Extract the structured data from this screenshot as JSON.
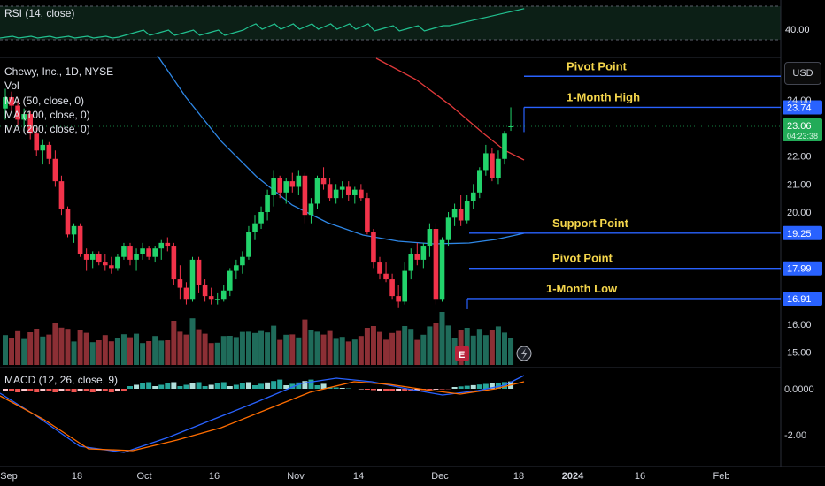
{
  "rsi": {
    "label": "RSI (14, close)",
    "axis_label": "40.00"
  },
  "main": {
    "labels": [
      "Chewy, Inc., 1D, NYSE",
      "Vol",
      "MA (50, close, 0)",
      "MA (100, close, 0)",
      "MA (200, close, 0)"
    ],
    "currency": "USD"
  },
  "price_axis": {
    "ticks": [
      "24.00",
      "22.00",
      "21.00",
      "20.00",
      "16.00",
      "15.00"
    ]
  },
  "annotations": [
    {
      "text": "Pivot Point",
      "price": 24.85,
      "value_label": ""
    },
    {
      "text": "1-Month High",
      "price": 23.74,
      "value_label": "23.74"
    },
    {
      "text": "Support Point",
      "price": 19.25,
      "value_label": "19.25"
    },
    {
      "text": "Pivot Point",
      "price": 17.99,
      "value_label": "17.99"
    },
    {
      "text": "1-Month Low",
      "price": 16.91,
      "value_label": "16.91"
    }
  ],
  "last_price": {
    "value": "23.06",
    "countdown": "04:23:38"
  },
  "macd": {
    "label": "MACD (12, 26, close, 9)",
    "axis_ticks": [
      "0.0000",
      "-2.00"
    ]
  },
  "time_axis": [
    "Sep",
    "18",
    "Oct",
    "16",
    "Nov",
    "14",
    "Dec",
    "18",
    "2024",
    "16",
    "Feb"
  ],
  "event_badges": [
    "E",
    "dividend-lightning-icon"
  ],
  "colors": {
    "up": "#22d36b",
    "down": "#f2334a",
    "ma50": "#2e87e6",
    "ma200": "#e0393a",
    "annotation": "#f5d64c",
    "line": "#2962ff"
  },
  "chart_data": {
    "type": "candlestick",
    "candles": [
      [
        23.7,
        24.4,
        23.3,
        24.1
      ],
      [
        24.1,
        24.3,
        23.6,
        23.8
      ],
      [
        23.8,
        24.0,
        23.1,
        23.3
      ],
      [
        23.3,
        23.7,
        22.9,
        23.5
      ],
      [
        23.5,
        23.6,
        22.6,
        22.8
      ],
      [
        22.8,
        23.0,
        22.0,
        22.2
      ],
      [
        22.2,
        22.6,
        21.7,
        22.4
      ],
      [
        22.4,
        22.5,
        21.7,
        21.9
      ],
      [
        21.9,
        22.2,
        20.9,
        21.1
      ],
      [
        21.1,
        21.3,
        19.9,
        20.1
      ],
      [
        20.1,
        20.2,
        19.1,
        19.2
      ],
      [
        19.2,
        19.6,
        18.9,
        19.5
      ],
      [
        19.5,
        19.6,
        18.4,
        18.5
      ],
      [
        18.5,
        18.7,
        17.9,
        18.3
      ],
      [
        18.3,
        18.6,
        18.0,
        18.5
      ],
      [
        18.5,
        18.6,
        18.1,
        18.2
      ],
      [
        18.2,
        18.5,
        17.9,
        18.1
      ],
      [
        18.1,
        18.4,
        17.8,
        18.0
      ],
      [
        18.0,
        18.5,
        17.9,
        18.4
      ],
      [
        18.4,
        18.9,
        18.3,
        18.8
      ],
      [
        18.8,
        18.9,
        18.1,
        18.3
      ],
      [
        18.3,
        18.7,
        17.9,
        18.5
      ],
      [
        18.5,
        18.9,
        18.3,
        18.7
      ],
      [
        18.7,
        18.8,
        18.3,
        18.4
      ],
      [
        18.4,
        18.8,
        18.2,
        18.7
      ],
      [
        18.7,
        19.0,
        18.3,
        18.9
      ],
      [
        18.9,
        19.1,
        18.6,
        18.8
      ],
      [
        18.8,
        18.9,
        17.4,
        17.6
      ],
      [
        17.6,
        18.1,
        16.9,
        17.3
      ],
      [
        17.3,
        17.5,
        16.7,
        16.9
      ],
      [
        16.9,
        18.4,
        16.8,
        18.3
      ],
      [
        18.3,
        18.4,
        17.1,
        17.4
      ],
      [
        17.4,
        17.6,
        16.8,
        17.0
      ],
      [
        17.0,
        17.3,
        16.7,
        16.9
      ],
      [
        16.9,
        17.1,
        16.7,
        16.9
      ],
      [
        16.9,
        17.4,
        16.8,
        17.2
      ],
      [
        17.2,
        18.0,
        17.0,
        17.9
      ],
      [
        17.9,
        18.3,
        17.6,
        18.1
      ],
      [
        18.1,
        18.6,
        17.8,
        18.4
      ],
      [
        18.4,
        19.5,
        18.3,
        19.3
      ],
      [
        19.3,
        19.9,
        19.0,
        19.6
      ],
      [
        19.6,
        20.2,
        19.4,
        20.0
      ],
      [
        20.0,
        20.8,
        19.7,
        20.6
      ],
      [
        20.6,
        21.5,
        20.2,
        21.2
      ],
      [
        21.2,
        21.3,
        20.5,
        20.7
      ],
      [
        20.7,
        21.2,
        20.3,
        21.1
      ],
      [
        21.1,
        21.4,
        20.7,
        20.9
      ],
      [
        20.9,
        21.5,
        20.6,
        21.3
      ],
      [
        21.3,
        21.4,
        19.6,
        19.9
      ],
      [
        19.9,
        20.5,
        19.6,
        20.3
      ],
      [
        20.3,
        21.3,
        20.1,
        21.2
      ],
      [
        21.2,
        21.6,
        20.8,
        21.0
      ],
      [
        21.0,
        21.2,
        20.4,
        20.5
      ],
      [
        20.5,
        21.0,
        20.3,
        20.8
      ],
      [
        20.8,
        21.1,
        20.5,
        20.9
      ],
      [
        20.9,
        21.1,
        20.4,
        20.6
      ],
      [
        20.6,
        20.9,
        20.3,
        20.8
      ],
      [
        20.8,
        21.0,
        20.4,
        20.5
      ],
      [
        20.5,
        20.7,
        19.2,
        19.3
      ],
      [
        19.3,
        19.4,
        18.0,
        18.2
      ],
      [
        18.2,
        18.4,
        17.6,
        17.8
      ],
      [
        17.8,
        18.2,
        17.5,
        17.6
      ],
      [
        17.6,
        17.8,
        16.9,
        17.0
      ],
      [
        17.0,
        17.4,
        16.6,
        16.8
      ],
      [
        16.8,
        18.2,
        16.7,
        17.9
      ],
      [
        17.9,
        18.7,
        17.6,
        18.5
      ],
      [
        18.5,
        18.9,
        18.1,
        18.3
      ],
      [
        18.3,
        18.9,
        18.0,
        18.8
      ],
      [
        18.8,
        19.6,
        18.4,
        19.4
      ],
      [
        19.4,
        19.6,
        16.7,
        16.9
      ],
      [
        16.9,
        19.1,
        16.8,
        19.0
      ],
      [
        19.0,
        20.0,
        18.8,
        19.8
      ],
      [
        19.8,
        20.3,
        19.5,
        20.1
      ],
      [
        20.1,
        20.6,
        19.5,
        19.7
      ],
      [
        19.7,
        20.6,
        19.6,
        20.4
      ],
      [
        20.4,
        21.0,
        20.1,
        20.7
      ],
      [
        20.7,
        21.6,
        20.5,
        21.5
      ],
      [
        21.5,
        22.4,
        21.3,
        22.1
      ],
      [
        22.1,
        22.3,
        21.1,
        21.2
      ],
      [
        21.2,
        22.2,
        21.0,
        21.9
      ],
      [
        21.9,
        22.9,
        21.7,
        22.8
      ],
      [
        23.06,
        23.74,
        22.9,
        23.06
      ]
    ],
    "ylim": [
      14.5,
      25.0
    ],
    "x_tick_labels": [
      "Sep",
      "18",
      "Oct",
      "16",
      "Nov",
      "14",
      "Dec",
      "18",
      "2024",
      "16",
      "Feb"
    ]
  }
}
